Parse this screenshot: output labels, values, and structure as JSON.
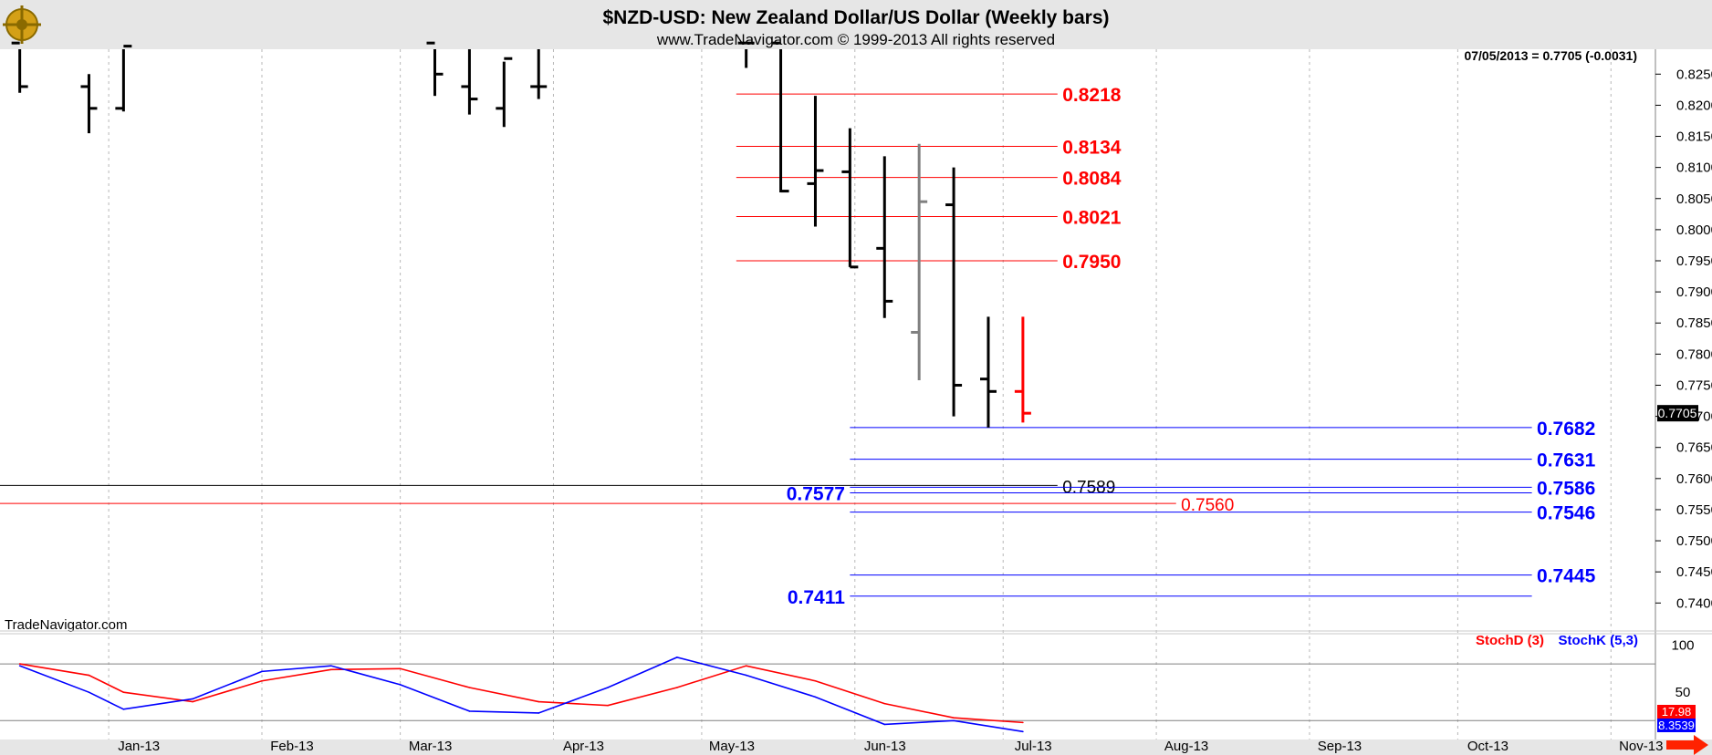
{
  "header": {
    "title": "$NZD-USD:  New Zealand Dollar/US Dollar  (Weekly bars)",
    "subtitle": "www.TradeNavigator.com © 1999-2013 All rights reserved",
    "last_quote": "07/05/2013 = 0.7705 (-0.0031)",
    "watermark": "TradeNavigator.com"
  },
  "colors": {
    "background": "#ffffff",
    "header_bg": "#e6e6e6",
    "bar_up": "#000000",
    "bar_gray": "#808080",
    "bar_current": "#ff0000",
    "fib_high": "#ff0000",
    "fib_low": "#0000ff",
    "stoch_d": "#ff0000",
    "stoch_k": "#0000ff"
  },
  "chart_data": [
    {
      "type": "bar",
      "subtype": "ohlc",
      "ylim": [
        0.7355,
        0.829
      ],
      "ytick_values": [
        0.74,
        0.745,
        0.75,
        0.755,
        0.76,
        0.765,
        0.77,
        0.775,
        0.78,
        0.785,
        0.79,
        0.795,
        0.8,
        0.805,
        0.81,
        0.815,
        0.82,
        0.825
      ],
      "ytick_labels": [
        "0.7400",
        "0.7450",
        "0.7500",
        "0.7550",
        "0.7600",
        "0.7650",
        "0.7700",
        "0.7750",
        "0.7800",
        "0.7850",
        "0.7900",
        "0.7950",
        "0.8000",
        "0.8050",
        "0.8100",
        "0.8150",
        "0.8200",
        "0.8250"
      ],
      "x_month_labels": [
        "Jan-13",
        "Feb-13",
        "Mar-13",
        "Apr-13",
        "May-13",
        "Jun-13",
        "Jul-13",
        "Aug-13",
        "Sep-13",
        "Oct-13",
        "Nov-13"
      ],
      "x_month_starts": [
        "2013-01-01",
        "2013-02-01",
        "2013-03-01",
        "2013-04-01",
        "2013-05-01",
        "2013-06-01",
        "2013-07-01",
        "2013-08-01",
        "2013-09-01",
        "2013-10-01",
        "2013-11-01"
      ],
      "xlim": [
        "2012-12-10",
        "2013-11-10"
      ],
      "last_price_label": "0.7705",
      "last_price": 0.7705,
      "bars": [
        {
          "date": "2012-12-14",
          "open": 0.83,
          "high": 0.835,
          "low": 0.822,
          "close": 0.823,
          "color": "up"
        },
        {
          "date": "2012-12-28",
          "open": 0.823,
          "high": 0.825,
          "low": 0.8155,
          "close": 0.8195,
          "color": "up"
        },
        {
          "date": "2013-01-04",
          "open": 0.8195,
          "high": 0.83,
          "low": 0.819,
          "close": 0.8295,
          "color": "up"
        },
        {
          "date": "2013-03-08",
          "open": 0.83,
          "high": 0.834,
          "low": 0.8215,
          "close": 0.825,
          "color": "up"
        },
        {
          "date": "2013-03-15",
          "open": 0.823,
          "high": 0.83,
          "low": 0.8185,
          "close": 0.821,
          "color": "up"
        },
        {
          "date": "2013-03-22",
          "open": 0.8195,
          "high": 0.827,
          "low": 0.8165,
          "close": 0.8275,
          "color": "up"
        },
        {
          "date": "2013-03-29",
          "open": 0.823,
          "high": 0.831,
          "low": 0.821,
          "close": 0.823,
          "color": "up"
        },
        {
          "date": "2013-05-10",
          "open": 0.83,
          "high": 0.832,
          "low": 0.826,
          "close": 0.83,
          "color": "up"
        },
        {
          "date": "2013-05-17",
          "open": 0.83,
          "high": 0.83,
          "low": 0.806,
          "close": 0.8062,
          "color": "up"
        },
        {
          "date": "2013-05-24",
          "open": 0.8074,
          "high": 0.8215,
          "low": 0.8005,
          "close": 0.8095,
          "color": "up"
        },
        {
          "date": "2013-05-31",
          "open": 0.8093,
          "high": 0.8163,
          "low": 0.794,
          "close": 0.794,
          "color": "up"
        },
        {
          "date": "2013-06-07",
          "open": 0.797,
          "high": 0.8118,
          "low": 0.7858,
          "close": 0.7885,
          "color": "up"
        },
        {
          "date": "2013-06-14",
          "open": 0.7835,
          "high": 0.8138,
          "low": 0.7758,
          "close": 0.8045,
          "color": "gray"
        },
        {
          "date": "2013-06-21",
          "open": 0.804,
          "high": 0.81,
          "low": 0.77,
          "close": 0.775,
          "color": "up"
        },
        {
          "date": "2013-06-28",
          "open": 0.776,
          "high": 0.786,
          "low": 0.7682,
          "close": 0.774,
          "color": "up"
        },
        {
          "date": "2013-07-05",
          "open": 0.774,
          "high": 0.786,
          "low": 0.769,
          "close": 0.7705,
          "color": "current"
        }
      ],
      "levels": [
        {
          "value": 0.8218,
          "label": "0.8218",
          "color": "red",
          "from": "2013-05-08",
          "to": "2013-07-12",
          "label_at": "2013-07-13",
          "label_side": "right",
          "bold": true
        },
        {
          "value": 0.8134,
          "label": "0.8134",
          "color": "red",
          "from": "2013-05-08",
          "to": "2013-07-12",
          "label_at": "2013-07-13",
          "label_side": "right",
          "bold": true
        },
        {
          "value": 0.8084,
          "label": "0.8084",
          "color": "red",
          "from": "2013-05-08",
          "to": "2013-07-12",
          "label_at": "2013-07-13",
          "label_side": "right",
          "bold": true
        },
        {
          "value": 0.8021,
          "label": "0.8021",
          "color": "red",
          "from": "2013-05-08",
          "to": "2013-07-12",
          "label_at": "2013-07-13",
          "label_side": "right",
          "bold": true
        },
        {
          "value": 0.795,
          "label": "0.7950",
          "color": "red",
          "from": "2013-05-08",
          "to": "2013-07-12",
          "label_at": "2013-07-13",
          "label_side": "right",
          "bold": true
        },
        {
          "value": 0.7682,
          "label": "0.7682",
          "color": "blue",
          "from": "2013-05-31",
          "to": "2013-10-16",
          "label_at": "2013-10-17",
          "label_side": "right",
          "bold": true
        },
        {
          "value": 0.7631,
          "label": "0.7631",
          "color": "blue",
          "from": "2013-05-31",
          "to": "2013-10-16",
          "label_at": "2013-10-17",
          "label_side": "right",
          "bold": true
        },
        {
          "value": 0.7589,
          "label": "0.7589",
          "color": "black",
          "from": "2012-12-10",
          "to": "2013-07-12",
          "label_at": "2013-07-13",
          "label_side": "right",
          "bold": false
        },
        {
          "value": 0.7586,
          "label": "0.7586",
          "color": "blue",
          "from": "2013-05-31",
          "to": "2013-10-16",
          "label_at": "2013-10-17",
          "label_side": "right",
          "bold": true
        },
        {
          "value": 0.7577,
          "label": "0.7577",
          "color": "blue",
          "from": "2013-05-31",
          "to": "2013-10-16",
          "label_at": "2013-05-30",
          "label_side": "left",
          "bold": true
        },
        {
          "value": 0.756,
          "label": "0.7560",
          "color": "red",
          "from": "2012-12-10",
          "to": "2013-08-05",
          "label_at": "2013-08-06",
          "label_side": "right",
          "bold": false
        },
        {
          "value": 0.7546,
          "label": "0.7546",
          "color": "blue",
          "from": "2013-05-31",
          "to": "2013-10-16",
          "label_at": "2013-10-17",
          "label_side": "right",
          "bold": true
        },
        {
          "value": 0.7445,
          "label": "0.7445",
          "color": "blue",
          "from": "2013-05-31",
          "to": "2013-10-16",
          "label_at": "2013-10-17",
          "label_side": "right",
          "bold": true
        },
        {
          "value": 0.7411,
          "label": "0.7411",
          "color": "blue",
          "from": "2013-05-31",
          "to": "2013-10-16",
          "label_at": "2013-05-30",
          "label_side": "left",
          "bold": true
        }
      ]
    },
    {
      "type": "line",
      "ylim": [
        0,
        110
      ],
      "ytick_values": [
        50,
        100
      ],
      "ytick_labels": [
        "50",
        "100"
      ],
      "reference_lines": [
        80,
        20
      ],
      "legend": [
        "StochD (3)",
        "StochK (5,3)"
      ],
      "last_values": [
        "17.98",
        "8.3539"
      ],
      "series": [
        {
          "name": "StochD (3)",
          "color": "red",
          "x": [
            "2012-12-14",
            "2012-12-28",
            "2013-01-04",
            "2013-01-18",
            "2013-02-01",
            "2013-02-15",
            "2013-03-01",
            "2013-03-15",
            "2013-03-29",
            "2013-04-12",
            "2013-04-26",
            "2013-05-10",
            "2013-05-24",
            "2013-06-07",
            "2013-06-21",
            "2013-07-05"
          ],
          "values": [
            80,
            68,
            50,
            40,
            62,
            74,
            75,
            55,
            40,
            36,
            55,
            78,
            62,
            38,
            23,
            17.98
          ]
        },
        {
          "name": "StochK (5,3)",
          "color": "blue",
          "x": [
            "2012-12-14",
            "2012-12-28",
            "2013-01-04",
            "2013-01-18",
            "2013-02-01",
            "2013-02-15",
            "2013-03-01",
            "2013-03-15",
            "2013-03-29",
            "2013-04-12",
            "2013-04-26",
            "2013-05-10",
            "2013-05-24",
            "2013-06-07",
            "2013-06-21",
            "2013-07-05"
          ],
          "values": [
            78,
            50,
            32,
            43,
            72,
            78,
            58,
            30,
            28,
            55,
            87,
            68,
            45,
            16,
            20,
            8.3539
          ]
        }
      ]
    }
  ]
}
